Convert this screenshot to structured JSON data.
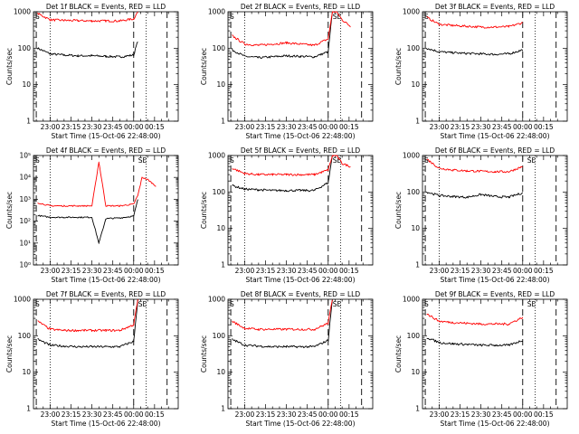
{
  "colors": {
    "events": "#000000",
    "lld": "#ff0000",
    "background": "#ffffff"
  },
  "chart_data": [
    {
      "type": "line",
      "title": "Det 1f BLACK = Events, RED = LLD",
      "ylabel": "Counts/sec",
      "xlabel": "Start Time (15-Oct-06 22:48:00)",
      "yscale": "log",
      "ylim": [
        1,
        1000
      ],
      "ytick_labels": [
        "1",
        "10",
        "100",
        "1000"
      ],
      "xtick_labels": [
        "23:00",
        "23:15",
        "23:30",
        "23:45",
        "00:00",
        "00:15"
      ],
      "corner_labels": [
        "S"
      ],
      "x": [
        "22:51",
        "23:00",
        "23:10",
        "23:20",
        "23:30",
        "23:40",
        "23:50",
        "00:00",
        "00:03",
        "00:06",
        "00:10",
        "00:16"
      ],
      "series": [
        {
          "name": "Events",
          "color": "#000000",
          "values": [
            100,
            70,
            65,
            62,
            62,
            60,
            58,
            65,
            160,
            null,
            null,
            null
          ]
        },
        {
          "name": "LLD",
          "color": "#ff0000",
          "values": [
            900,
            600,
            580,
            570,
            560,
            560,
            560,
            640,
            1000,
            null,
            null,
            null
          ]
        }
      ]
    },
    {
      "type": "line",
      "title": "Det 2f BLACK = Events, RED = LLD",
      "ylabel": "Counts/sec",
      "xlabel": "Start Time (15-Oct-06 22:48:00)",
      "yscale": "log",
      "ylim": [
        1,
        1000
      ],
      "ytick_labels": [
        "1",
        "10",
        "100",
        "1000"
      ],
      "xtick_labels": [
        "23:00",
        "23:15",
        "23:30",
        "23:45",
        "00:00",
        "00:15"
      ],
      "corner_labels": [
        "S",
        "SE"
      ],
      "x": [
        "22:51",
        "23:00",
        "23:10",
        "23:20",
        "23:30",
        "23:40",
        "23:50",
        "00:00",
        "00:03",
        "00:06",
        "00:10",
        "00:16"
      ],
      "series": [
        {
          "name": "Events",
          "color": "#000000",
          "values": [
            90,
            60,
            55,
            58,
            62,
            60,
            58,
            80,
            1000,
            null,
            null,
            null
          ]
        },
        {
          "name": "LLD",
          "color": "#ff0000",
          "values": [
            220,
            130,
            120,
            130,
            140,
            130,
            120,
            180,
            1000,
            1000,
            600,
            400
          ]
        }
      ]
    },
    {
      "type": "line",
      "title": "Det 3f BLACK = Events, RED = LLD",
      "ylabel": "Counts/sec",
      "xlabel": "Start Time (15-Oct-06 22:48:00)",
      "yscale": "log",
      "ylim": [
        1,
        1000
      ],
      "ytick_labels": [
        "1",
        "10",
        "100",
        "1000"
      ],
      "xtick_labels": [
        "23:00",
        "23:15",
        "23:30",
        "23:45",
        "00:00",
        "00:15"
      ],
      "corner_labels": [
        "S"
      ],
      "x": [
        "22:51",
        "23:00",
        "23:10",
        "23:20",
        "23:30",
        "23:40",
        "23:50",
        "00:00",
        "00:03",
        "00:06",
        "00:10",
        "00:16"
      ],
      "series": [
        {
          "name": "Events",
          "color": "#000000",
          "values": [
            100,
            80,
            75,
            72,
            70,
            68,
            70,
            90,
            null,
            null,
            null,
            null
          ]
        },
        {
          "name": "LLD",
          "color": "#ff0000",
          "values": [
            700,
            450,
            420,
            400,
            380,
            380,
            390,
            500,
            null,
            null,
            null,
            null
          ]
        }
      ]
    },
    {
      "type": "line",
      "title": "Det 4f BLACK = Events, RED = LLD",
      "ylabel": "Counts/sec",
      "xlabel": "Start Time (15-Oct-06 22:48:00)",
      "yscale": "log",
      "ylim": [
        1,
        100000
      ],
      "ytick_labels": [
        "10⁰",
        "10¹",
        "10²",
        "10³",
        "10⁴",
        "10⁵"
      ],
      "xtick_labels": [
        "23:00",
        "23:15",
        "23:30",
        "23:45",
        "00:00",
        "00:15"
      ],
      "corner_labels": [
        "S",
        "SE"
      ],
      "x": [
        "22:51",
        "23:00",
        "23:10",
        "23:20",
        "23:30",
        "23:35",
        "23:40",
        "23:50",
        "00:00",
        "00:03",
        "00:06",
        "00:10",
        "00:16"
      ],
      "series": [
        {
          "name": "Events",
          "color": "#000000",
          "values": [
            180,
            150,
            150,
            150,
            150,
            10,
            130,
            140,
            170,
            1000,
            null,
            null,
            null
          ]
        },
        {
          "name": "LLD",
          "color": "#ff0000",
          "values": [
            700,
            500,
            500,
            500,
            500,
            50000,
            500,
            500,
            600,
            1500,
            10000,
            8000,
            4000
          ]
        }
      ]
    },
    {
      "type": "line",
      "title": "Det 5f BLACK = Events, RED = LLD",
      "ylabel": "Counts/sec",
      "xlabel": "Start Time (15-Oct-06 22:48:00)",
      "yscale": "log",
      "ylim": [
        1,
        1000
      ],
      "ytick_labels": [
        "1",
        "10",
        "100",
        "1000"
      ],
      "xtick_labels": [
        "23:00",
        "23:15",
        "23:30",
        "23:45",
        "00:00",
        "00:15"
      ],
      "corner_labels": [
        "S",
        "SE"
      ],
      "x": [
        "22:51",
        "23:00",
        "23:10",
        "23:20",
        "23:30",
        "23:40",
        "23:50",
        "00:00",
        "00:03",
        "00:06",
        "00:10",
        "00:16"
      ],
      "series": [
        {
          "name": "Events",
          "color": "#000000",
          "values": [
            150,
            120,
            115,
            110,
            110,
            110,
            110,
            180,
            1000,
            null,
            null,
            null
          ]
        },
        {
          "name": "LLD",
          "color": "#ff0000",
          "values": [
            450,
            320,
            300,
            300,
            300,
            300,
            300,
            400,
            1000,
            1000,
            600,
            500
          ]
        }
      ]
    },
    {
      "type": "line",
      "title": "Det 6f BLACK = Events, RED = LLD",
      "ylabel": "Counts/sec",
      "xlabel": "Start Time (15-Oct-06 22:48:00)",
      "yscale": "log",
      "ylim": [
        1,
        1000
      ],
      "ytick_labels": [
        "1",
        "10",
        "100",
        "1000"
      ],
      "xtick_labels": [
        "23:00",
        "23:15",
        "23:30",
        "23:45",
        "00:00",
        "00:15"
      ],
      "corner_labels": [
        "S",
        "SE"
      ],
      "x": [
        "22:51",
        "23:00",
        "23:10",
        "23:20",
        "23:30",
        "23:40",
        "23:50",
        "00:00",
        "00:03",
        "00:06",
        "00:10",
        "00:16"
      ],
      "series": [
        {
          "name": "Events",
          "color": "#000000",
          "values": [
            100,
            80,
            75,
            72,
            85,
            75,
            72,
            95,
            null,
            null,
            null,
            null
          ]
        },
        {
          "name": "LLD",
          "color": "#ff0000",
          "values": [
            800,
            450,
            400,
            380,
            370,
            360,
            360,
            500,
            null,
            null,
            null,
            null
          ]
        }
      ]
    },
    {
      "type": "line",
      "title": "Det 7f BLACK = Events, RED = LLD",
      "ylabel": "Counts/sec",
      "xlabel": "Start Time (15-Oct-06 22:48:00)",
      "yscale": "log",
      "ylim": [
        1,
        1000
      ],
      "ytick_labels": [
        "1",
        "10",
        "100",
        "1000"
      ],
      "xtick_labels": [
        "23:00",
        "23:15",
        "23:30",
        "23:45",
        "00:00",
        "00:15"
      ],
      "corner_labels": [
        "S",
        "SE"
      ],
      "x": [
        "22:51",
        "23:00",
        "23:10",
        "23:20",
        "23:30",
        "23:40",
        "23:50",
        "00:00",
        "00:03",
        "00:06",
        "00:10",
        "00:16"
      ],
      "series": [
        {
          "name": "Events",
          "color": "#000000",
          "values": [
            80,
            55,
            52,
            50,
            50,
            50,
            50,
            70,
            1000,
            null,
            null,
            null
          ]
        },
        {
          "name": "LLD",
          "color": "#ff0000",
          "values": [
            250,
            150,
            140,
            140,
            140,
            140,
            140,
            200,
            1000,
            null,
            null,
            null
          ]
        }
      ]
    },
    {
      "type": "line",
      "title": "Det 8f BLACK = Events, RED = LLD",
      "ylabel": "Counts/sec",
      "xlabel": "Start Time (15-Oct-06 22:48:00)",
      "yscale": "log",
      "ylim": [
        1,
        1000
      ],
      "ytick_labels": [
        "1",
        "10",
        "100",
        "1000"
      ],
      "xtick_labels": [
        "23:00",
        "23:15",
        "23:30",
        "23:45",
        "00:00",
        "00:15"
      ],
      "corner_labels": [
        "S",
        "SE"
      ],
      "x": [
        "22:51",
        "23:00",
        "23:10",
        "23:20",
        "23:30",
        "23:40",
        "23:50",
        "00:00",
        "00:03",
        "00:06",
        "00:10",
        "00:16"
      ],
      "series": [
        {
          "name": "Events",
          "color": "#000000",
          "values": [
            80,
            55,
            52,
            50,
            50,
            50,
            50,
            75,
            1000,
            null,
            null,
            null
          ]
        },
        {
          "name": "LLD",
          "color": "#ff0000",
          "values": [
            250,
            160,
            150,
            150,
            150,
            150,
            150,
            220,
            1000,
            null,
            null,
            null
          ]
        }
      ]
    },
    {
      "type": "line",
      "title": "Det 9f BLACK = Events, RED = LLD",
      "ylabel": "Counts/sec",
      "xlabel": "Start Time (15-Oct-06 22:48:00)",
      "yscale": "log",
      "ylim": [
        1,
        1000
      ],
      "ytick_labels": [
        "1",
        "10",
        "100",
        "1000"
      ],
      "xtick_labels": [
        "23:00",
        "23:15",
        "23:30",
        "23:45",
        "00:00",
        "00:15"
      ],
      "corner_labels": [
        "S",
        "SE"
      ],
      "x": [
        "22:51",
        "23:00",
        "23:10",
        "23:20",
        "23:30",
        "23:40",
        "23:50",
        "00:00",
        "00:03",
        "00:06",
        "00:10",
        "00:16"
      ],
      "series": [
        {
          "name": "Events",
          "color": "#000000",
          "values": [
            90,
            65,
            60,
            58,
            55,
            55,
            55,
            75,
            null,
            null,
            null,
            null
          ]
        },
        {
          "name": "LLD",
          "color": "#ff0000",
          "values": [
            400,
            250,
            230,
            220,
            210,
            210,
            210,
            320,
            null,
            null,
            null,
            null
          ]
        }
      ]
    }
  ]
}
